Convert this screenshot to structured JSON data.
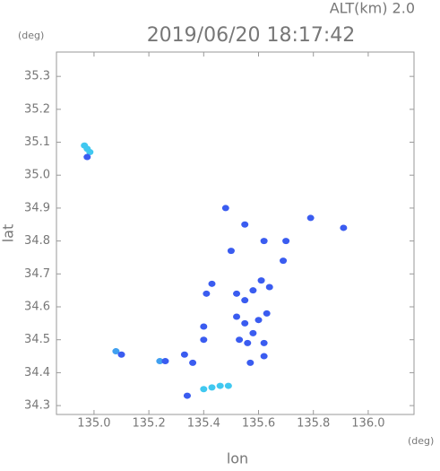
{
  "chart_data": {
    "type": "scatter",
    "title": "2019/06/20 18:17:42",
    "subtitle": "ALT(km) 2.0",
    "x_label": "lon",
    "y_label": "lat",
    "x_unit": "(deg)",
    "y_unit": "(deg)",
    "x": [
      134.975,
      134.965,
      134.985,
      134.975,
      135.08,
      135.1,
      135.24,
      135.26,
      135.33,
      135.36,
      135.34,
      135.4,
      135.4,
      135.41,
      135.43,
      135.48,
      135.5,
      135.4,
      135.43,
      135.46,
      135.49,
      135.52,
      135.55,
      135.52,
      135.55,
      135.53,
      135.56,
      135.58,
      135.6,
      135.62,
      135.62,
      135.63,
      135.64,
      135.61,
      135.58,
      135.57,
      135.62,
      135.7,
      135.69,
      135.79,
      135.91,
      135.55
    ],
    "y": [
      35.08,
      35.09,
      35.07,
      35.055,
      34.465,
      34.455,
      34.435,
      34.435,
      34.455,
      34.43,
      34.33,
      34.54,
      34.5,
      34.64,
      34.67,
      34.9,
      34.77,
      34.35,
      34.355,
      34.36,
      34.36,
      34.64,
      34.62,
      34.57,
      34.55,
      34.5,
      34.49,
      34.52,
      34.56,
      34.45,
      34.49,
      34.58,
      34.66,
      34.68,
      34.65,
      34.43,
      34.8,
      34.8,
      34.74,
      34.87,
      34.84,
      34.85
    ],
    "colors": [
      "#40c8f0",
      "#40c8f0",
      "#40c8f0",
      "#3a5cf0",
      "#40a0f0",
      "#3a5cf0",
      "#40a0f0",
      "#3a5cf0",
      "#3a5cf0",
      "#3a5cf0",
      "#3a5cf0",
      "#3a5cf0",
      "#3a5cf0",
      "#3a5cf0",
      "#3a5cf0",
      "#3a5cf0",
      "#3a5cf0",
      "#40c8f0",
      "#40c8f0",
      "#40c8f0",
      "#40c8f0",
      "#3a5cf0",
      "#3a5cf0",
      "#3a5cf0",
      "#3a5cf0",
      "#3a5cf0",
      "#3a5cf0",
      "#3a5cf0",
      "#3a5cf0",
      "#3a5cf0",
      "#3a5cf0",
      "#3a5cf0",
      "#3a5cf0",
      "#3a5cf0",
      "#3a5cf0",
      "#3a5cf0",
      "#3a5cf0",
      "#3a5cf0",
      "#3a5cf0",
      "#3a5cf0",
      "#3a5cf0",
      "#3a5cf0"
    ],
    "xlim": [
      134.863,
      136.167
    ],
    "ylim": [
      34.273,
      35.374
    ],
    "xticks": [
      {
        "value": 135.0,
        "label": "135.0"
      },
      135.2,
      135.4,
      135.6,
      135.8,
      {
        "value": 136.0,
        "label": "136.0"
      }
    ],
    "yticks": [
      34.3,
      34.4,
      34.5,
      34.6,
      34.7,
      34.8,
      34.9,
      {
        "value": 35.0,
        "label": "35.0"
      },
      35.1,
      35.2,
      35.3
    ]
  }
}
